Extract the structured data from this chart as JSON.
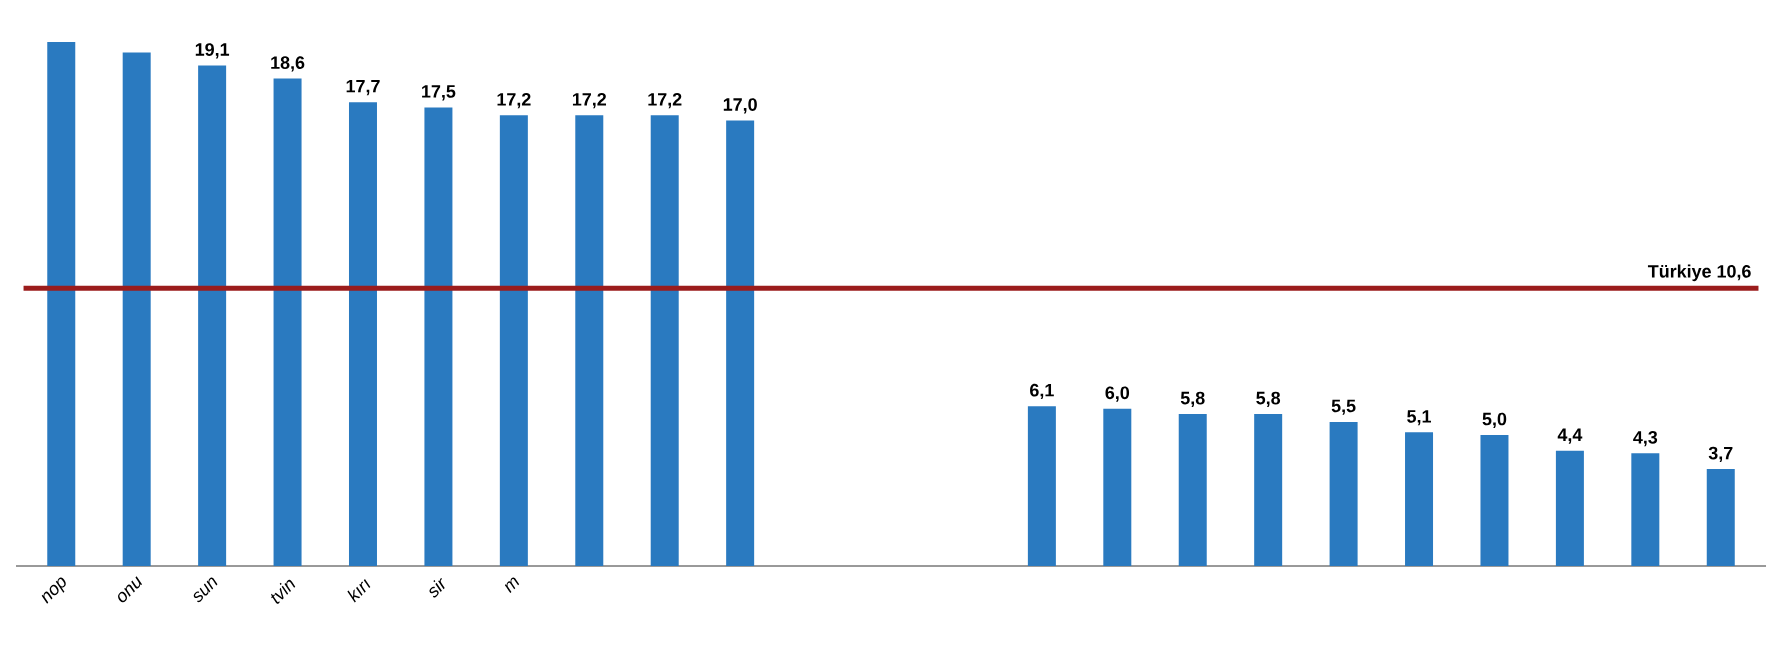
{
  "chart_data": {
    "type": "bar",
    "categories": [
      "nop",
      "onu",
      "sun",
      "tvin",
      "kırı",
      "sir",
      "m",
      null,
      null,
      null,
      null,
      null,
      null,
      null,
      null,
      null,
      null,
      null,
      null,
      null,
      null,
      null,
      null
    ],
    "values": [
      20.0,
      19.6,
      19.1,
      18.6,
      17.7,
      17.5,
      17.2,
      17.2,
      17.2,
      17.0,
      null,
      null,
      null,
      6.1,
      6.0,
      5.8,
      5.8,
      5.5,
      5.1,
      5.0,
      4.4,
      4.3,
      3.7
    ],
    "value_labels": [
      null,
      null,
      "19,1",
      "18,6",
      "17,7",
      "17,5",
      "17,2",
      "17,2",
      "17,2",
      "17,0",
      null,
      null,
      null,
      "6,1",
      "6,0",
      "5,8",
      "5,8",
      "5,5",
      "5,1",
      "5,0",
      "4,4",
      "4,3",
      "3,7"
    ],
    "color": "#2a7ac0",
    "ref_lines": [
      {
        "axis": "y",
        "value": 10.6,
        "label": "Türkiye 10,6",
        "color": "#9b1c1c"
      }
    ]
  }
}
